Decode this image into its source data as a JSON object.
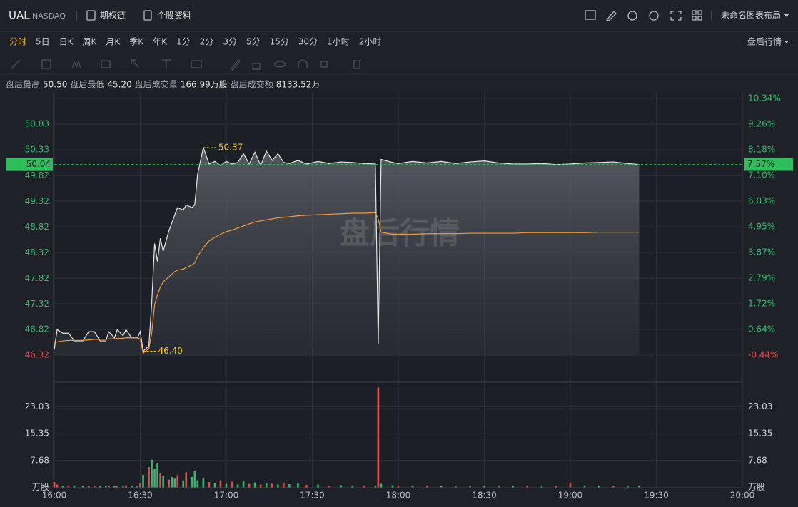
{
  "header": {
    "symbol": "UAL",
    "exchange": "NASDAQ",
    "links": [
      "期权链",
      "个股资料"
    ],
    "layout_name": "未命名图表布局"
  },
  "periods": {
    "items": [
      "分时",
      "5日",
      "日K",
      "周K",
      "月K",
      "季K",
      "年K",
      "1分",
      "2分",
      "3分",
      "5分",
      "15分",
      "30分",
      "1小时",
      "2小时"
    ],
    "active": 0
  },
  "session_mode": "盘后行情",
  "info": [
    {
      "label": "盘后最高",
      "value": "50.50"
    },
    {
      "label": "盘后最低",
      "value": "45.20"
    },
    {
      "label": "盘后成交量",
      "value": "166.99万股"
    },
    {
      "label": "盘后成交额",
      "value": "8133.52万"
    }
  ],
  "chart_data": {
    "type": "intraday",
    "watermark": "盘后行情",
    "grid": true,
    "x": [
      "16:00",
      "16:01",
      "16:03",
      "16:05",
      "16:07",
      "16:10",
      "16:12",
      "16:14",
      "16:16",
      "16:18",
      "16:19",
      "16:21",
      "16:22",
      "16:24",
      "16:25",
      "16:27",
      "16:29",
      "16:30",
      "16:31",
      "16:33",
      "16:34",
      "16:35",
      "16:36",
      "16:37",
      "16:38",
      "16:40",
      "16:41",
      "16:42",
      "16:43",
      "16:45",
      "16:46",
      "16:48",
      "16:49",
      "16:50",
      "16:52",
      "16:54",
      "16:56",
      "16:58",
      "17:00",
      "17:02",
      "17:04",
      "17:06",
      "17:08",
      "17:10",
      "17:12",
      "17:14",
      "17:16",
      "17:18",
      "17:20",
      "17:22",
      "17:25",
      "17:28",
      "17:32",
      "17:36",
      "17:40",
      "17:44",
      "17:48",
      "17:52",
      "17:53",
      "17:54",
      "17:58",
      "18:00",
      "18:05",
      "18:10",
      "18:15",
      "18:20",
      "18:25",
      "18:30",
      "18:35",
      "18:40",
      "18:45",
      "18:50",
      "18:55",
      "19:00",
      "19:05",
      "19:10",
      "19:15",
      "19:20",
      "19:24"
    ],
    "xlim": [
      "16:00",
      "20:00"
    ],
    "xticks": [
      "16:00",
      "16:30",
      "17:00",
      "17:30",
      "18:00",
      "18:30",
      "19:00",
      "19:30",
      "20:00"
    ],
    "ylim": [
      45.85,
      51.44
    ],
    "yticks": [
      50.83,
      50.33,
      49.82,
      49.32,
      48.82,
      48.32,
      47.82,
      47.32,
      46.82,
      46.32
    ],
    "ytick_colors": [
      "#2ebd6b",
      "#2ebd6b",
      "#2ebd6b",
      "#2ebd6b",
      "#2ebd6b",
      "#2ebd6b",
      "#2ebd6b",
      "#2ebd6b",
      "#2ebd6b",
      "#e84a4a"
    ],
    "y2lim": [
      -1.46,
      10.58
    ],
    "y2ticks": [
      {
        "value": 10.34,
        "label": "10.34%"
      },
      {
        "value": 9.26,
        "label": "9.26%"
      },
      {
        "value": 8.18,
        "label": "8.18%"
      },
      {
        "value": 7.1,
        "label": "7.10%"
      },
      {
        "value": 6.03,
        "label": "6.03%"
      },
      {
        "value": 4.95,
        "label": "4.95%"
      },
      {
        "value": 3.87,
        "label": "3.87%"
      },
      {
        "value": 2.79,
        "label": "2.79%"
      },
      {
        "value": 1.72,
        "label": "1.72%"
      },
      {
        "value": 0.64,
        "label": "0.64%"
      },
      {
        "value": -0.44,
        "label": "-0.44%"
      }
    ],
    "y2tick_colors": [
      "#2ebd6b",
      "#2ebd6b",
      "#2ebd6b",
      "#2ebd6b",
      "#2ebd6b",
      "#2ebd6b",
      "#2ebd6b",
      "#2ebd6b",
      "#2ebd6b",
      "#2ebd6b",
      "#e84a4a"
    ],
    "series": [
      {
        "color": "#e6e6e6",
        "values": [
          46.43,
          46.82,
          46.75,
          46.75,
          46.6,
          46.6,
          46.78,
          46.78,
          46.6,
          46.6,
          46.78,
          46.66,
          46.82,
          46.7,
          46.82,
          46.66,
          46.66,
          46.78,
          46.4,
          46.5,
          47.35,
          48.5,
          48.15,
          48.6,
          48.35,
          48.75,
          48.9,
          49.05,
          49.2,
          49.15,
          49.25,
          49.2,
          49.25,
          49.85,
          50.37,
          50.05,
          50.1,
          50.02,
          50.1,
          50.05,
          50.08,
          50.25,
          50.05,
          50.28,
          50.02,
          50.3,
          50.12,
          50.25,
          50.08,
          50.06,
          50.12,
          50.05,
          50.1,
          50.06,
          50.09,
          50.08,
          50.06,
          50.05,
          46.53,
          50.14,
          50.08,
          50.06,
          50.1,
          50.07,
          50.1,
          50.06,
          50.09,
          50.11,
          50.07,
          50.05,
          50.05,
          50.06,
          50.04,
          50.05,
          50.07,
          50.08,
          50.09,
          50.06,
          50.04
        ]
      },
      {
        "color": "#ee9a3a",
        "values": [
          46.56,
          46.58,
          46.6,
          46.61,
          46.61,
          46.61,
          46.62,
          46.63,
          46.63,
          46.63,
          46.64,
          46.64,
          46.65,
          46.65,
          46.66,
          46.66,
          46.66,
          46.64,
          46.36,
          46.45,
          46.75,
          47.3,
          47.5,
          47.65,
          47.75,
          47.85,
          47.9,
          47.95,
          47.98,
          48.0,
          48.03,
          48.08,
          48.12,
          48.25,
          48.42,
          48.55,
          48.62,
          48.68,
          48.73,
          48.76,
          48.8,
          48.84,
          48.88,
          48.92,
          48.94,
          48.96,
          48.98,
          49.0,
          49.01,
          49.02,
          49.04,
          49.05,
          49.06,
          49.07,
          49.08,
          49.09,
          49.09,
          49.1,
          48.98,
          48.72,
          48.68,
          48.68,
          48.68,
          48.69,
          48.69,
          48.69,
          48.7,
          48.7,
          48.7,
          48.7,
          48.71,
          48.71,
          48.71,
          48.71,
          48.71,
          48.72,
          48.72,
          48.72,
          48.72
        ]
      }
    ],
    "volume": {
      "ylim": [
        0,
        29.2
      ],
      "yticks": [
        {
          "value": 0,
          "label": "万股"
        },
        7.68,
        15.35,
        23.03
      ],
      "values": [
        1.5,
        0.8,
        0.3,
        0.4,
        0.3,
        0.3,
        0.4,
        0.3,
        0.5,
        0.3,
        0.4,
        0.3,
        0.5,
        0.3,
        0.6,
        0.3,
        0.4,
        1.2,
        3.6,
        5.8,
        7.9,
        5.2,
        7.0,
        4.0,
        3.2,
        2.2,
        3.0,
        2.5,
        3.5,
        2.0,
        4.3,
        3.0,
        4.6,
        2.0,
        2.6,
        1.5,
        1.2,
        2.0,
        1.0,
        1.6,
        0.8,
        1.8,
        1.0,
        1.4,
        0.8,
        1.2,
        1.0,
        0.8,
        1.2,
        0.9,
        1.3,
        0.7,
        0.8,
        0.5,
        0.6,
        0.4,
        0.5,
        0.4,
        28.5,
        1.0,
        0.6,
        0.5,
        0.4,
        0.5,
        0.3,
        0.4,
        0.3,
        0.4,
        0.3,
        0.5,
        0.3,
        0.4,
        0.3,
        1.2,
        0.3,
        0.4,
        0.3,
        0.4,
        0.3
      ],
      "colors": [
        "#e84a4a",
        "#e84a4a",
        "#2ebd6b",
        "#e84a4a",
        "#2ebd6b",
        "#2ebd6b",
        "#e84a4a",
        "#e84a4a",
        "#2ebd6b",
        "#2ebd6b",
        "#e84a4a",
        "#2ebd6b",
        "#e84a4a",
        "#2ebd6b",
        "#e84a4a",
        "#2ebd6b",
        "#2ebd6b",
        "#e84a4a",
        "#2ebd6b",
        "#e84a4a",
        "#2ebd6b",
        "#2ebd6b",
        "#2ebd6b",
        "#e84a4a",
        "#2ebd6b",
        "#e84a4a",
        "#2ebd6b",
        "#2ebd6b",
        "#e84a4a",
        "#2ebd6b",
        "#e84a4a",
        "#2ebd6b",
        "#2ebd6b",
        "#2ebd6b",
        "#2ebd6b",
        "#e84a4a",
        "#2ebd6b",
        "#e84a4a",
        "#2ebd6b",
        "#e84a4a",
        "#2ebd6b",
        "#2ebd6b",
        "#e84a4a",
        "#2ebd6b",
        "#e84a4a",
        "#2ebd6b",
        "#e84a4a",
        "#2ebd6b",
        "#e84a4a",
        "#2ebd6b",
        "#2ebd6b",
        "#e84a4a",
        "#2ebd6b",
        "#e84a4a",
        "#2ebd6b",
        "#2ebd6b",
        "#e84a4a",
        "#2ebd6b",
        "#e84a4a",
        "#2ebd6b",
        "#2ebd6b",
        "#e84a4a",
        "#2ebd6b",
        "#e84a4a",
        "#2ebd6b",
        "#e84a4a",
        "#2ebd6b",
        "#2ebd6b",
        "#e84a4a",
        "#2ebd6b",
        "#e84a4a",
        "#2ebd6b",
        "#e84a4a",
        "#e84a4a",
        "#2ebd6b",
        "#2ebd6b",
        "#e84a4a",
        "#2ebd6b",
        "#2ebd6b"
      ]
    },
    "last": {
      "value": 50.04,
      "pct": {
        "value": 7.57,
        "label": "7.57%"
      },
      "color": "#2ebd5a"
    },
    "annotations": [
      {
        "x": "16:52",
        "value": 50.37
      },
      {
        "x": "16:31",
        "value": 46.4,
        "label": "46.40"
      }
    ],
    "annotation_color": "#f5c518"
  }
}
